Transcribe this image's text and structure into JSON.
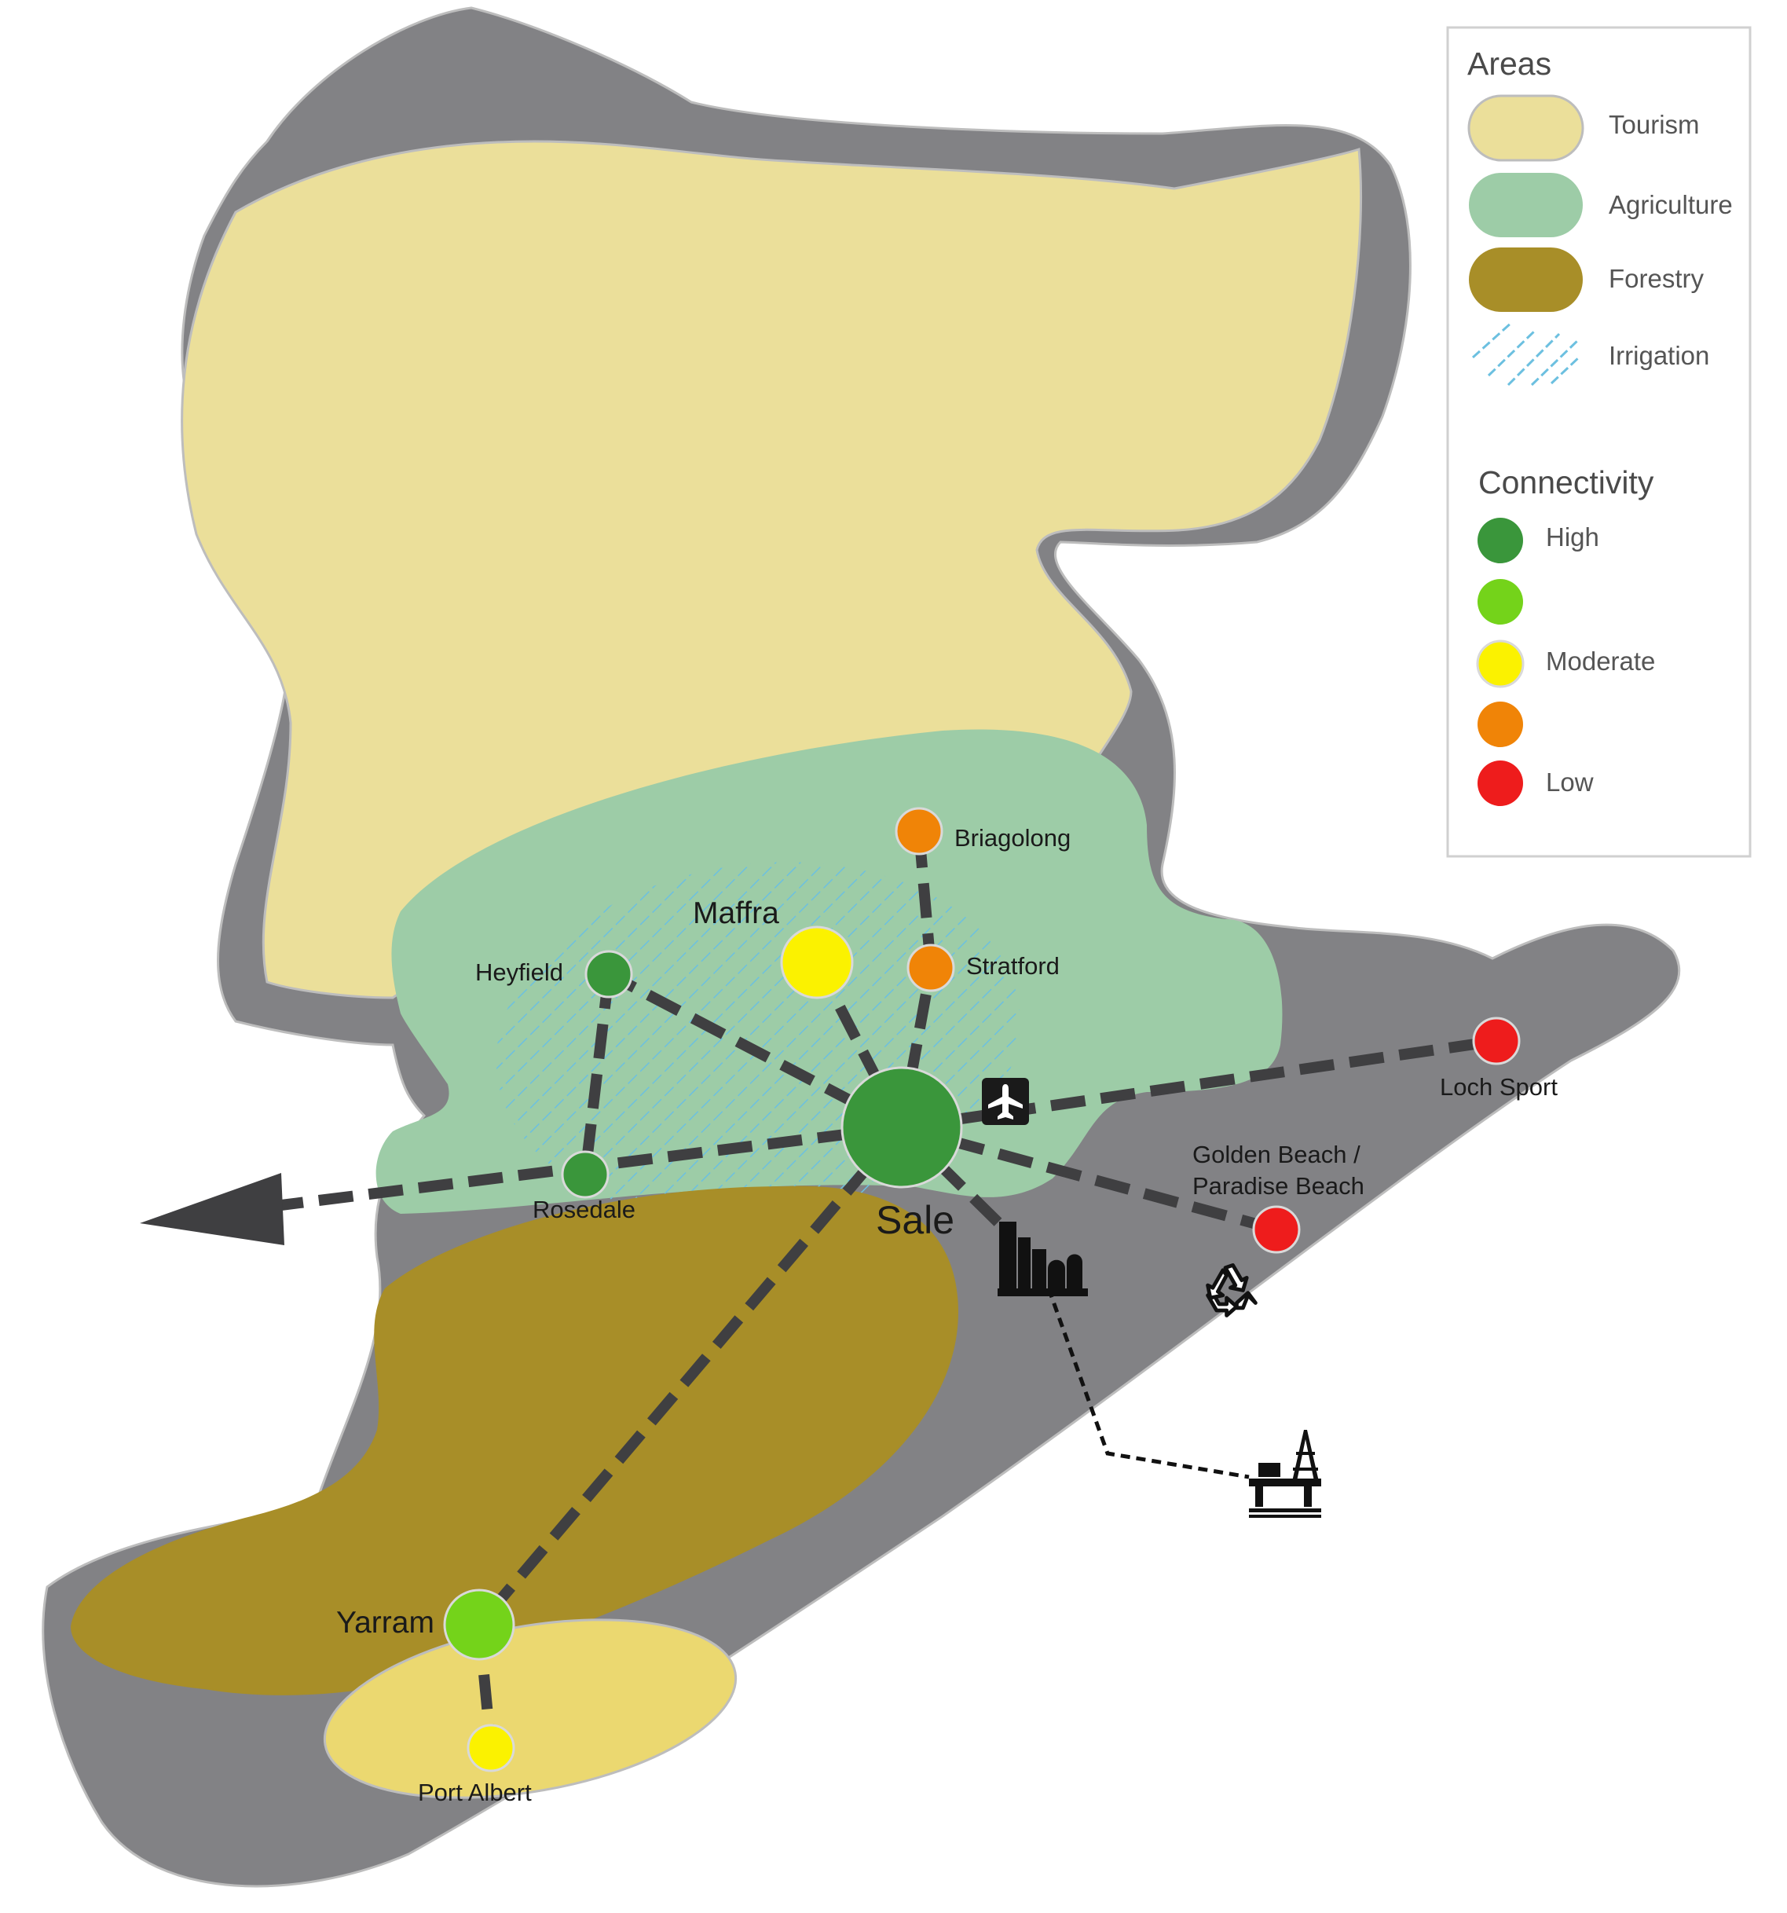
{
  "towns": {
    "sale": {
      "name": "Sale",
      "connectivity": "High",
      "color": "#3a963b"
    },
    "maffra": {
      "name": "Maffra",
      "connectivity": "Moderate",
      "color": "#fbf200"
    },
    "heyfield": {
      "name": "Heyfield",
      "connectivity": "High",
      "color": "#3a963b"
    },
    "rosedale": {
      "name": "Rosedale",
      "connectivity": "High",
      "color": "#3a963b"
    },
    "briagolong": {
      "name": "Briagolong",
      "connectivity": "Moderate-Low",
      "color": "#f08407"
    },
    "stratford": {
      "name": "Stratford",
      "connectivity": "Moderate-Low",
      "color": "#f08407"
    },
    "loch_sport": {
      "name": "Loch Sport",
      "connectivity": "Low",
      "color": "#ee1c1c"
    },
    "golden_beach": {
      "name_line1": "Golden Beach /",
      "name_line2": "Paradise Beach",
      "connectivity": "Low",
      "color": "#ee1c1c"
    },
    "yarram": {
      "name": "Yarram",
      "connectivity": "High-Moderate",
      "color": "#74d31a"
    },
    "port_albert": {
      "name": "Port Albert",
      "connectivity": "Moderate",
      "color": "#fbf200"
    }
  },
  "icons": [
    "airport-icon",
    "industrial-plant-icon",
    "recycling-icon",
    "offshore-oil-rig-icon",
    "outbound-arrow-icon"
  ],
  "legend": {
    "areas_title": "Areas",
    "areas": [
      {
        "label": "Tourism",
        "color": "#ebdf9a"
      },
      {
        "label": "Agriculture",
        "color": "#9dcca7"
      },
      {
        "label": "Forestry",
        "color": "#a88e28"
      },
      {
        "label": "Irrigation",
        "color": "#6cc0e0"
      }
    ],
    "connectivity_title": "Connectivity",
    "connectivity": [
      {
        "label": "High",
        "color": "#3a963b"
      },
      {
        "label": "",
        "color": "#74d31a"
      },
      {
        "label": "Moderate",
        "color": "#fbf200"
      },
      {
        "label": "",
        "color": "#f08407"
      },
      {
        "label": "Low",
        "color": "#ee1c1c"
      }
    ]
  },
  "colors": {
    "region": "#828285",
    "tourism": "#ebdf9a",
    "tourism_south": "#ebd870",
    "agriculture": "#9dcca7",
    "forestry": "#a88e28",
    "irrigation": "#6cc0e0",
    "road": "#3f3f41"
  }
}
